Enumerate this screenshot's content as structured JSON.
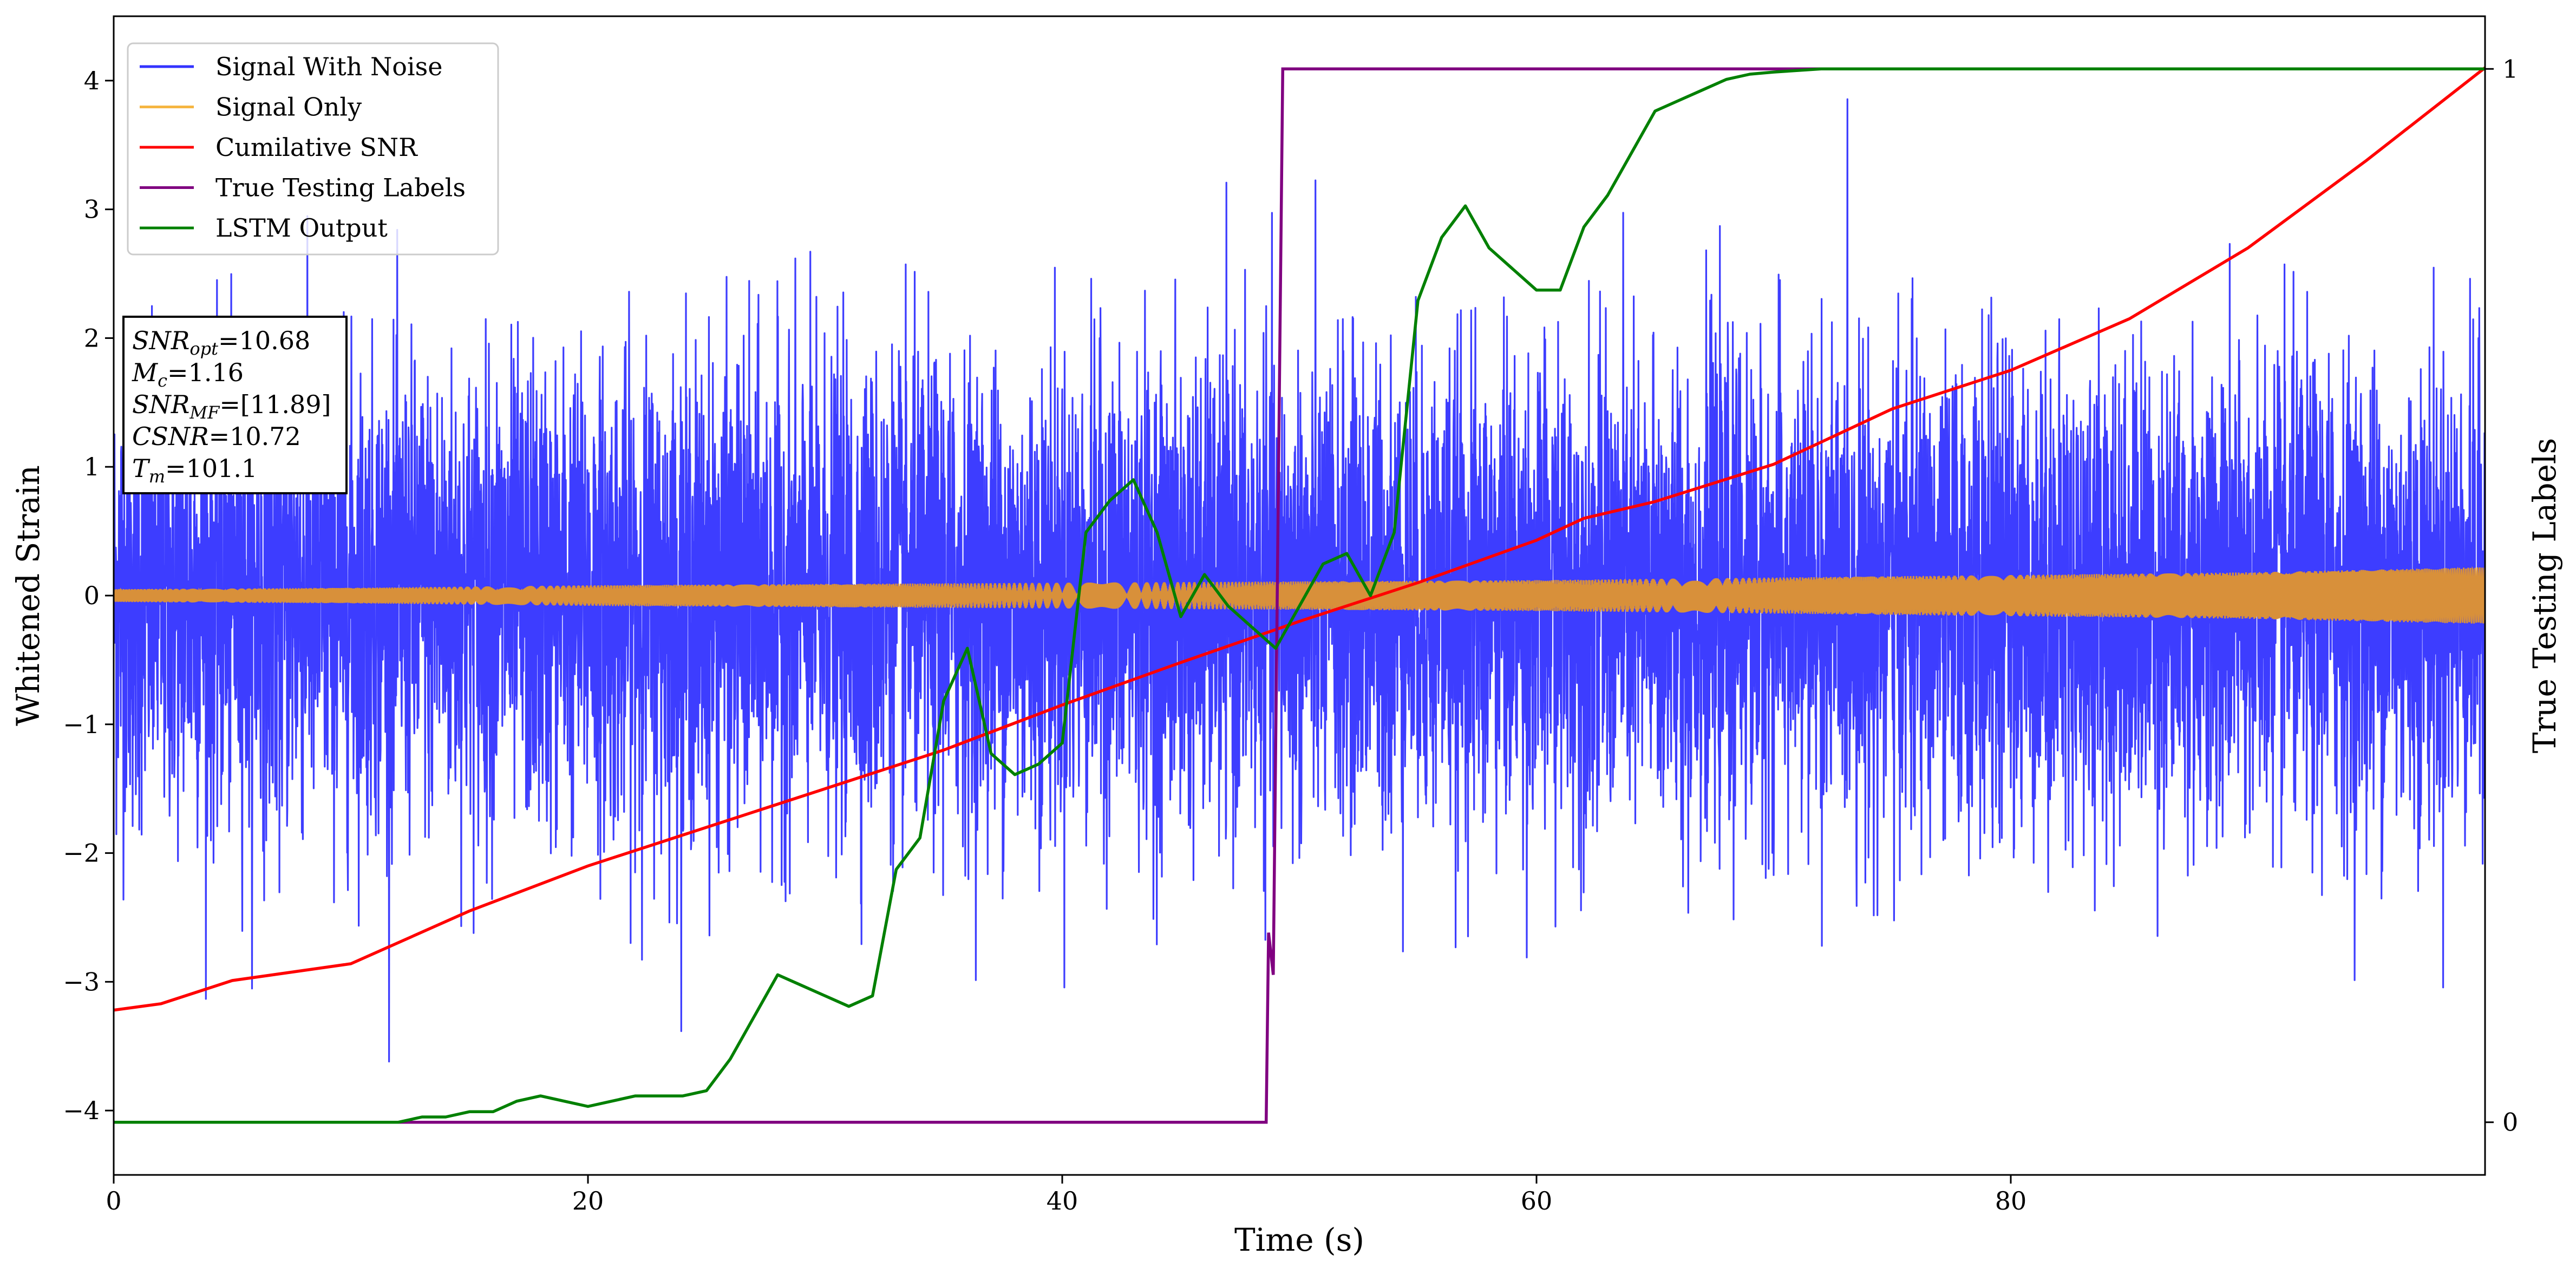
{
  "chart_data": {
    "type": "line",
    "xlabel": "Time (s)",
    "ylabel": "Whitened Strain",
    "y2label": "True Testing Labels",
    "xlim": [
      0,
      100
    ],
    "ylim": [
      -4.5,
      4.5
    ],
    "y2lim": [
      -0.05,
      1.05
    ],
    "x_ticks": [
      0,
      20,
      40,
      60,
      80
    ],
    "y_ticks": [
      -4,
      -3,
      -2,
      -1,
      0,
      1,
      2,
      3,
      4
    ],
    "y2_ticks": [
      0,
      1
    ],
    "grid": false,
    "legend": "top-left",
    "annotation": {
      "snr_opt": {
        "sym": "SNR",
        "sub": "opt",
        "value": "=10.68"
      },
      "mc": {
        "sym": "M",
        "sub": "c",
        "value": "=1.16"
      },
      "snr_mf": {
        "sym": "SNR",
        "sub": "MF",
        "value": "=[11.89]"
      },
      "csnr": {
        "sym": "CSNR",
        "sub": "",
        "value": "=10.72"
      },
      "tm": {
        "sym": "T",
        "sub": "m",
        "value": "=101.1"
      }
    },
    "series": [
      {
        "name": "Signal With Noise",
        "color": "#3333ff",
        "axis": "left",
        "noise_std": 0.9,
        "max_abs": 4.1,
        "note_visual": "dense white-noise band roughly -2.5 to 2.5 with spikes to about ±4"
      },
      {
        "name": "Signal Only",
        "color": "#d8903a",
        "legend_color": "#f5b642",
        "axis": "left",
        "envelope_x": [
          0,
          10,
          20,
          30,
          40,
          50,
          60,
          70,
          80,
          90,
          100
        ],
        "envelope_amp": [
          0.05,
          0.06,
          0.08,
          0.09,
          0.1,
          0.11,
          0.12,
          0.14,
          0.16,
          0.18,
          0.22
        ]
      },
      {
        "name": "Cumilative SNR",
        "color": "#ff0000",
        "axis": "left",
        "x": [
          0,
          2,
          5,
          10,
          15,
          20,
          25,
          30,
          35,
          40,
          45,
          50,
          55,
          60,
          62,
          65,
          70,
          75,
          80,
          85,
          90,
          95,
          100
        ],
        "y": [
          -3.22,
          -3.17,
          -2.99,
          -2.86,
          -2.45,
          -2.1,
          -1.8,
          -1.5,
          -1.2,
          -0.85,
          -0.52,
          -0.2,
          0.1,
          0.43,
          0.6,
          0.73,
          1.02,
          1.45,
          1.75,
          2.15,
          2.7,
          3.38,
          4.1
        ]
      },
      {
        "name": "True Testing Labels",
        "color": "#800080",
        "axis": "right",
        "x": [
          0,
          48.6,
          48.7,
          48.9,
          49.3,
          100
        ],
        "y": [
          0,
          0,
          0.18,
          0.14,
          1,
          1
        ]
      },
      {
        "name": "LSTM Output",
        "color": "#008000",
        "axis": "right",
        "x": [
          0,
          12,
          13,
          14,
          15,
          16,
          17,
          18,
          19,
          20,
          21,
          22,
          23,
          24,
          25,
          26,
          27,
          28,
          29,
          30,
          31,
          32,
          33,
          34,
          35,
          36,
          37,
          38,
          39,
          40,
          41,
          42,
          43,
          44,
          45,
          46,
          47,
          48,
          49,
          50,
          51,
          52,
          53,
          54,
          55,
          56,
          57,
          58,
          59,
          60,
          61,
          62,
          63,
          64,
          65,
          66,
          67,
          68,
          69,
          70,
          72,
          75,
          80,
          90,
          100
        ],
        "y": [
          0,
          0,
          0.005,
          0.005,
          0.01,
          0.01,
          0.02,
          0.025,
          0.02,
          0.015,
          0.02,
          0.025,
          0.025,
          0.025,
          0.03,
          0.06,
          0.1,
          0.14,
          0.13,
          0.12,
          0.11,
          0.12,
          0.24,
          0.27,
          0.4,
          0.45,
          0.35,
          0.33,
          0.34,
          0.36,
          0.56,
          0.59,
          0.61,
          0.56,
          0.48,
          0.52,
          0.49,
          0.47,
          0.45,
          0.49,
          0.53,
          0.54,
          0.5,
          0.56,
          0.78,
          0.84,
          0.87,
          0.83,
          0.81,
          0.79,
          0.79,
          0.85,
          0.88,
          0.92,
          0.96,
          0.97,
          0.98,
          0.99,
          0.995,
          0.997,
          1,
          1,
          1,
          1,
          1
        ]
      }
    ]
  }
}
